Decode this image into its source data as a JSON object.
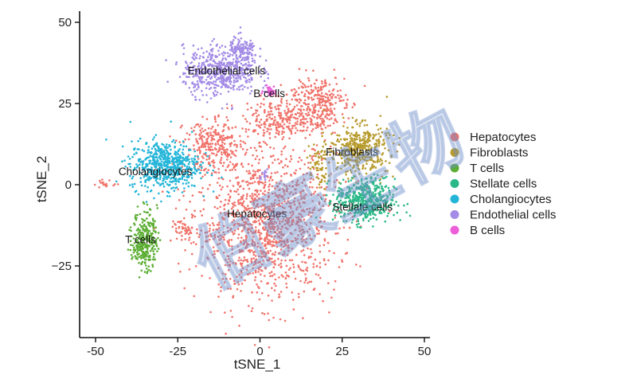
{
  "chart_data": {
    "type": "scatter",
    "title": "",
    "xlabel": "tSNE_1",
    "ylabel": "tSNE_2",
    "xlim": [
      -55,
      52
    ],
    "ylim": [
      -46,
      52
    ],
    "x_ticks": [
      -50,
      -25,
      0,
      25,
      50
    ],
    "y_ticks": [
      50,
      25,
      0,
      -25
    ],
    "x_tick_labels": [
      "-50",
      "-25",
      "0",
      "25",
      "50"
    ],
    "y_tick_labels": [
      "50",
      "25",
      "0",
      "−25"
    ],
    "grid": false,
    "legend_position": "right",
    "series": [
      {
        "name": "Hepatocytes",
        "color": "#F0736B",
        "label": "Hepatocytes",
        "label_at": [
          -10,
          -10
        ],
        "clusters": [
          {
            "cx": 2,
            "cy": -12,
            "sx": 14,
            "sy": 15,
            "n": 1300
          },
          {
            "cx": -14,
            "cy": 12,
            "sx": 6,
            "sy": 5,
            "n": 260
          },
          {
            "cx": 6,
            "cy": 20,
            "sx": 7,
            "sy": 4,
            "n": 220
          },
          {
            "cx": 17,
            "cy": 25,
            "sx": 6,
            "sy": 6,
            "n": 320
          },
          {
            "cx": -22,
            "cy": -14,
            "sx": 3,
            "sy": 3,
            "n": 50
          },
          {
            "cx": -47,
            "cy": 0,
            "sx": 2,
            "sy": 0.8,
            "n": 18
          }
        ]
      },
      {
        "name": "Fibroblasts",
        "color": "#B79A2A",
        "label": "Fibroblasts",
        "label_at": [
          20,
          9
        ],
        "clusters": [
          {
            "cx": 30,
            "cy": 11,
            "sx": 6,
            "sy": 5,
            "n": 420
          },
          {
            "cx": 18,
            "cy": 5,
            "sx": 2,
            "sy": 4,
            "n": 60
          }
        ]
      },
      {
        "name": "T cells",
        "color": "#5BAE33",
        "label": "T cells",
        "label_at": [
          -41,
          -18
        ],
        "clusters": [
          {
            "cx": -35,
            "cy": -17,
            "sx": 2.5,
            "sy": 6,
            "n": 300
          }
        ]
      },
      {
        "name": "Stellate cells",
        "color": "#2BB889",
        "label": "Stellate cells",
        "label_at": [
          22,
          -8
        ],
        "clusters": [
          {
            "cx": 32,
            "cy": -5,
            "sx": 6,
            "sy": 4.5,
            "n": 500
          }
        ]
      },
      {
        "name": "Cholangiocytes",
        "color": "#23B5D8",
        "label": "Cholangiocytes",
        "label_at": [
          -43,
          3
        ],
        "clusters": [
          {
            "cx": -29,
            "cy": 6,
            "sx": 7,
            "sy": 5,
            "n": 600
          }
        ]
      },
      {
        "name": "Endothelial cells",
        "color": "#A38BE6",
        "label": "Endothelial cells",
        "label_at": [
          -22,
          34
        ],
        "clusters": [
          {
            "cx": -12,
            "cy": 35,
            "sx": 7.5,
            "sy": 5,
            "n": 520
          },
          {
            "cx": -5,
            "cy": 41,
            "sx": 3,
            "sy": 3,
            "n": 120
          },
          {
            "cx": 1,
            "cy": 3,
            "sx": 1.2,
            "sy": 1.2,
            "n": 15
          }
        ]
      },
      {
        "name": "B cells",
        "color": "#EC5FD8",
        "label": "B cells",
        "label_at": [
          -2,
          27
        ],
        "clusters": [
          {
            "cx": 3,
            "cy": 29,
            "sx": 1.2,
            "sy": 1.0,
            "n": 40
          }
        ]
      }
    ]
  },
  "watermark_text": "伯豪生物"
}
